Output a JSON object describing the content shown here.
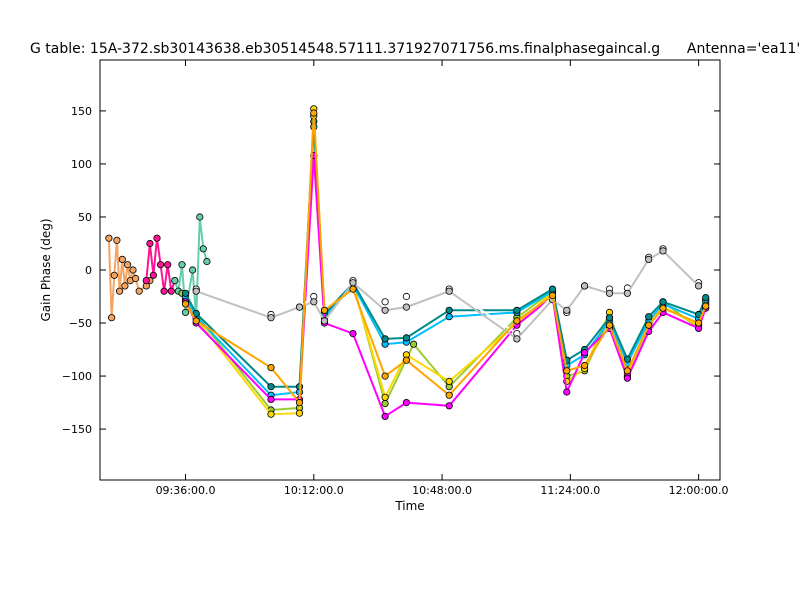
{
  "chart_data": {
    "type": "line",
    "title": "G table: 15A-372.sb30143638.eb30514548.57111.371927071756.ms.finalphasegaincal.g      Antenna='ea11'",
    "xlabel": "Time",
    "ylabel": "Gain Phase (deg)",
    "x_unit": "minutes",
    "xlim": [
      "09:12:00",
      "12:06:00"
    ],
    "ylim": [
      -198,
      198
    ],
    "xticks": [
      {
        "t": "09:36:00",
        "label": "09:36:00.0"
      },
      {
        "t": "10:12:00",
        "label": "10:12:00.0"
      },
      {
        "t": "10:48:00",
        "label": "10:48:00.0"
      },
      {
        "t": "11:24:00",
        "label": "11:24:00.0"
      },
      {
        "t": "12:00:00",
        "label": "12:00:00.0"
      }
    ],
    "yticks": [
      150,
      100,
      50,
      0,
      -50,
      -100,
      -150
    ],
    "grid": false,
    "legend": "none",
    "series": [
      {
        "color": "#f4a460",
        "points": [
          [
            "09:14:30",
            30
          ],
          [
            "09:15:15",
            -45
          ],
          [
            "09:16:00",
            -5
          ],
          [
            "09:16:45",
            28
          ],
          [
            "09:17:30",
            -20
          ],
          [
            "09:18:15",
            10
          ],
          [
            "09:19:00",
            -15
          ],
          [
            "09:19:45",
            5
          ],
          [
            "09:20:30",
            -10
          ],
          [
            "09:21:15",
            0
          ],
          [
            "09:22:00",
            -8
          ],
          [
            "09:23:00",
            -20
          ],
          [
            "09:25:00",
            -15
          ],
          [
            "09:26:00",
            -10
          ]
        ]
      },
      {
        "color": "#ff1493",
        "points": [
          [
            "09:25:00",
            -10
          ],
          [
            "09:26:00",
            25
          ],
          [
            "09:27:00",
            -5
          ],
          [
            "09:28:00",
            30
          ],
          [
            "09:29:00",
            5
          ],
          [
            "09:30:00",
            -20
          ],
          [
            "09:31:00",
            5
          ],
          [
            "09:32:00",
            -20
          ],
          [
            "09:33:00",
            -10
          ]
        ]
      },
      {
        "color": "#66cdaa",
        "points": [
          [
            "09:33:00",
            -10
          ],
          [
            "09:34:00",
            -20
          ],
          [
            "09:35:00",
            5
          ],
          [
            "09:36:00",
            -40
          ],
          [
            "09:38:00",
            0
          ],
          [
            "09:39:00",
            -45
          ],
          [
            "09:40:00",
            50
          ],
          [
            "09:41:00",
            20
          ],
          [
            "09:42:00",
            8
          ]
        ]
      },
      {
        "color": "#9acd32",
        "points": [
          [
            "09:35:00",
            -22
          ],
          [
            "09:39:00",
            -42
          ],
          [
            "10:00:00",
            -132
          ],
          [
            "10:08:00",
            -130
          ],
          [
            "10:12:00",
            145
          ],
          [
            "10:15:00",
            -40
          ],
          [
            "10:23:00",
            -12
          ],
          [
            "10:32:00",
            -126
          ],
          [
            "10:40:00",
            -70
          ],
          [
            "10:50:00",
            -110
          ],
          [
            "11:09:00",
            -45
          ],
          [
            "11:19:00",
            -20
          ],
          [
            "11:23:00",
            -100
          ],
          [
            "11:28:00",
            -95
          ],
          [
            "11:35:00",
            -45
          ],
          [
            "11:40:00",
            -100
          ],
          [
            "11:46:00",
            -55
          ],
          [
            "11:50:00",
            -30
          ],
          [
            "12:00:00",
            -55
          ],
          [
            "12:02:00",
            -30
          ]
        ]
      },
      {
        "color": "#ffd700",
        "points": [
          [
            "09:36:00",
            -28
          ],
          [
            "09:39:00",
            -46
          ],
          [
            "10:00:00",
            -136
          ],
          [
            "10:08:00",
            -135
          ],
          [
            "10:12:00",
            152
          ],
          [
            "10:15:00",
            -45
          ],
          [
            "10:23:00",
            -14
          ],
          [
            "10:32:00",
            -120
          ],
          [
            "10:38:00",
            -80
          ],
          [
            "10:50:00",
            -105
          ],
          [
            "11:09:00",
            -50
          ],
          [
            "11:19:00",
            -22
          ],
          [
            "11:23:00",
            -105
          ],
          [
            "11:28:00",
            -93
          ],
          [
            "11:35:00",
            -40
          ],
          [
            "11:40:00",
            -98
          ],
          [
            "11:46:00",
            -50
          ],
          [
            "11:50:00",
            -35
          ],
          [
            "12:00:00",
            -52
          ],
          [
            "12:02:00",
            -32
          ]
        ]
      },
      {
        "color": "#00bfff",
        "points": [
          [
            "09:36:00",
            -25
          ],
          [
            "09:39:00",
            -44
          ],
          [
            "10:00:00",
            -118
          ],
          [
            "10:08:00",
            -115
          ],
          [
            "10:12:00",
            135
          ],
          [
            "10:15:00",
            -45
          ],
          [
            "10:23:00",
            -14
          ],
          [
            "10:32:00",
            -70
          ],
          [
            "10:38:00",
            -68
          ],
          [
            "10:50:00",
            -44
          ],
          [
            "11:09:00",
            -40
          ],
          [
            "11:19:00",
            -20
          ],
          [
            "11:23:00",
            -90
          ],
          [
            "11:28:00",
            -80
          ],
          [
            "11:35:00",
            -48
          ],
          [
            "11:40:00",
            -88
          ],
          [
            "11:46:00",
            -48
          ],
          [
            "11:50:00",
            -32
          ],
          [
            "12:00:00",
            -46
          ],
          [
            "12:02:00",
            -28
          ]
        ]
      },
      {
        "color": "#008b8b",
        "points": [
          [
            "09:36:00",
            -22
          ],
          [
            "09:39:00",
            -41
          ],
          [
            "10:00:00",
            -110
          ],
          [
            "10:08:00",
            -110
          ],
          [
            "10:12:00",
            140
          ],
          [
            "10:15:00",
            -42
          ],
          [
            "10:23:00",
            -12
          ],
          [
            "10:32:00",
            -65
          ],
          [
            "10:38:00",
            -64
          ],
          [
            "10:50:00",
            -38
          ],
          [
            "11:09:00",
            -38
          ],
          [
            "11:19:00",
            -18
          ],
          [
            "11:23:00",
            -85
          ],
          [
            "11:28:00",
            -75
          ],
          [
            "11:35:00",
            -45
          ],
          [
            "11:40:00",
            -84
          ],
          [
            "11:46:00",
            -44
          ],
          [
            "11:50:00",
            -30
          ],
          [
            "12:00:00",
            -42
          ],
          [
            "12:02:00",
            -26
          ]
        ]
      },
      {
        "color": "#ff00ff",
        "points": [
          [
            "09:36:00",
            -30
          ],
          [
            "09:39:00",
            -50
          ],
          [
            "10:00:00",
            -122
          ],
          [
            "10:08:00",
            -122
          ],
          [
            "10:12:00",
            108
          ],
          [
            "10:15:00",
            -50
          ],
          [
            "10:23:00",
            -60
          ],
          [
            "10:32:00",
            -138
          ],
          [
            "10:38:00",
            -125
          ],
          [
            "10:50:00",
            -128
          ],
          [
            "11:09:00",
            -52
          ],
          [
            "11:19:00",
            -25
          ],
          [
            "11:23:00",
            -115
          ],
          [
            "11:28:00",
            -78
          ],
          [
            "11:35:00",
            -55
          ],
          [
            "11:40:00",
            -102
          ],
          [
            "11:46:00",
            -58
          ],
          [
            "11:50:00",
            -40
          ],
          [
            "12:00:00",
            -55
          ],
          [
            "12:02:00",
            -36
          ]
        ]
      },
      {
        "color": "#ffffff",
        "points": [
          [
            "09:39:00",
            -18
          ],
          [
            "10:00:00",
            -42
          ],
          [
            "10:08:00",
            -35
          ],
          [
            "10:12:00",
            -25
          ],
          [
            "10:15:00",
            -38
          ],
          [
            "10:23:00",
            -10
          ],
          [
            "10:32:00",
            -30
          ],
          [
            "10:38:00",
            -25
          ],
          [
            "10:50:00",
            -18
          ],
          [
            "11:09:00",
            -60
          ],
          [
            "11:19:00",
            -25
          ],
          [
            "11:23:00",
            -40
          ],
          [
            "11:28:00",
            -15
          ],
          [
            "11:35:00",
            -18
          ],
          [
            "11:40:00",
            -17
          ],
          [
            "11:46:00",
            12
          ],
          [
            "11:50:00",
            20
          ],
          [
            "12:00:00",
            -12
          ]
        ]
      },
      {
        "color": "#c0c0c0",
        "points": [
          [
            "09:39:00",
            -20
          ],
          [
            "10:00:00",
            -45
          ],
          [
            "10:08:00",
            -35
          ],
          [
            "10:12:00",
            -30
          ],
          [
            "10:15:00",
            -48
          ],
          [
            "10:23:00",
            -12
          ],
          [
            "10:32:00",
            -38
          ],
          [
            "10:38:00",
            -35
          ],
          [
            "10:50:00",
            -20
          ],
          [
            "11:09:00",
            -65
          ],
          [
            "11:19:00",
            -28
          ],
          [
            "11:23:00",
            -38
          ],
          [
            "11:28:00",
            -15
          ],
          [
            "11:35:00",
            -22
          ],
          [
            "11:40:00",
            -22
          ],
          [
            "11:46:00",
            10
          ],
          [
            "11:50:00",
            18
          ],
          [
            "12:00:00",
            -15
          ]
        ]
      },
      {
        "color": "#ffa500",
        "points": [
          [
            "09:36:00",
            -32
          ],
          [
            "09:39:00",
            -48
          ],
          [
            "10:00:00",
            -92
          ],
          [
            "10:08:00",
            -125
          ],
          [
            "10:12:00",
            148
          ],
          [
            "10:15:00",
            -38
          ],
          [
            "10:23:00",
            -18
          ],
          [
            "10:32:00",
            -100
          ],
          [
            "10:38:00",
            -85
          ],
          [
            "10:50:00",
            -118
          ],
          [
            "11:09:00",
            -48
          ],
          [
            "11:19:00",
            -24
          ],
          [
            "11:23:00",
            -95
          ],
          [
            "11:28:00",
            -90
          ],
          [
            "11:35:00",
            -52
          ],
          [
            "11:40:00",
            -95
          ],
          [
            "11:46:00",
            -52
          ],
          [
            "11:50:00",
            -36
          ],
          [
            "12:00:00",
            -50
          ],
          [
            "12:02:00",
            -34
          ]
        ]
      }
    ]
  }
}
